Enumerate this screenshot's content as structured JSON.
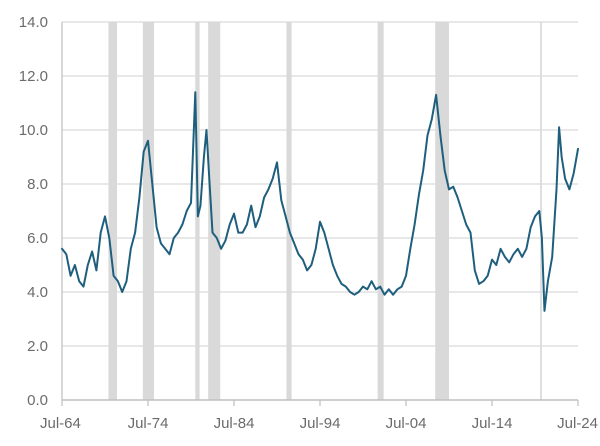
{
  "chart_data": {
    "type": "line",
    "title": "",
    "xlabel": "",
    "ylabel": "",
    "ylim": [
      0,
      14
    ],
    "yticks": [
      "0.0",
      "2.0",
      "4.0",
      "6.0",
      "8.0",
      "10.0",
      "12.0",
      "14.0"
    ],
    "yticks_values": [
      0,
      2,
      4,
      6,
      8,
      10,
      12,
      14
    ],
    "xlim": [
      1964.5,
      2024.5
    ],
    "xticks": [
      "Jul-64",
      "Jul-74",
      "Jul-84",
      "Jul-94",
      "Jul-04",
      "Jul-14",
      "Jul-24"
    ],
    "xticks_values": [
      1964.5,
      1974.5,
      1984.5,
      1994.5,
      2004.5,
      2014.5,
      2024.5
    ],
    "grid": true,
    "legend": "none",
    "colors": {
      "line": "#1f5f7e",
      "recession": "#d9d9d9",
      "grid": "#d9d9d9",
      "axis": "#bfbfbf",
      "tick_text": "#6b6b6b"
    },
    "recession_bands": [
      [
        1969.9,
        1970.9
      ],
      [
        1973.9,
        1975.2
      ],
      [
        1980.0,
        1980.5
      ],
      [
        1981.5,
        1982.9
      ],
      [
        1990.6,
        1991.2
      ],
      [
        2001.2,
        2001.9
      ],
      [
        2007.9,
        2009.5
      ],
      [
        2020.1,
        2020.3
      ]
    ],
    "series": [
      {
        "x": [
          1964.5,
          1965.0,
          1965.5,
          1966.0,
          1966.5,
          1967.0,
          1967.5,
          1968.0,
          1968.5,
          1969.0,
          1969.5,
          1970.0,
          1970.5,
          1971.0,
          1971.5,
          1972.0,
          1972.5,
          1973.0,
          1973.5,
          1974.0,
          1974.5,
          1975.0,
          1975.5,
          1976.0,
          1976.5,
          1977.0,
          1977.5,
          1978.0,
          1978.5,
          1979.0,
          1979.5,
          1980.0,
          1980.3,
          1980.6,
          1981.0,
          1981.3,
          1981.7,
          1982.0,
          1982.5,
          1983.0,
          1983.5,
          1984.0,
          1984.5,
          1985.0,
          1985.5,
          1986.0,
          1986.5,
          1987.0,
          1987.5,
          1988.0,
          1988.5,
          1989.0,
          1989.5,
          1990.0,
          1990.5,
          1991.0,
          1991.5,
          1992.0,
          1992.5,
          1993.0,
          1993.5,
          1994.0,
          1994.5,
          1995.0,
          1995.5,
          1996.0,
          1996.5,
          1997.0,
          1997.5,
          1998.0,
          1998.5,
          1999.0,
          1999.5,
          2000.0,
          2000.5,
          2001.0,
          2001.5,
          2002.0,
          2002.5,
          2003.0,
          2003.5,
          2004.0,
          2004.5,
          2005.0,
          2005.5,
          2006.0,
          2006.5,
          2007.0,
          2007.5,
          2008.0,
          2008.5,
          2009.0,
          2009.5,
          2010.0,
          2010.5,
          2011.0,
          2011.5,
          2012.0,
          2012.5,
          2013.0,
          2013.5,
          2014.0,
          2014.5,
          2015.0,
          2015.5,
          2016.0,
          2016.5,
          2017.0,
          2017.5,
          2018.0,
          2018.5,
          2019.0,
          2019.5,
          2020.0,
          2020.3,
          2020.6,
          2021.0,
          2021.5,
          2022.0,
          2022.3,
          2022.6,
          2023.0,
          2023.5,
          2024.0,
          2024.5
        ],
        "y": [
          5.6,
          5.4,
          4.6,
          5.0,
          4.4,
          4.2,
          5.0,
          5.5,
          4.8,
          6.2,
          6.8,
          6.0,
          4.6,
          4.4,
          4.0,
          4.4,
          5.6,
          6.2,
          7.5,
          9.2,
          9.6,
          8.0,
          6.4,
          5.8,
          5.6,
          5.4,
          6.0,
          6.2,
          6.5,
          7.0,
          7.3,
          11.4,
          6.8,
          7.2,
          9.0,
          10.0,
          7.8,
          6.2,
          6.0,
          5.6,
          5.9,
          6.5,
          6.9,
          6.2,
          6.2,
          6.5,
          7.2,
          6.4,
          6.8,
          7.5,
          7.8,
          8.2,
          8.8,
          7.4,
          6.8,
          6.2,
          5.8,
          5.4,
          5.2,
          4.8,
          5.0,
          5.6,
          6.6,
          6.2,
          5.6,
          5.0,
          4.6,
          4.3,
          4.2,
          4.0,
          3.9,
          4.0,
          4.2,
          4.1,
          4.4,
          4.1,
          4.2,
          3.9,
          4.1,
          3.9,
          4.1,
          4.2,
          4.6,
          5.6,
          6.5,
          7.6,
          8.5,
          9.8,
          10.4,
          11.3,
          9.8,
          8.5,
          7.8,
          7.9,
          7.5,
          7.0,
          6.5,
          6.2,
          4.8,
          4.3,
          4.4,
          4.6,
          5.2,
          5.0,
          5.6,
          5.3,
          5.1,
          5.4,
          5.6,
          5.3,
          5.6,
          6.4,
          6.8,
          7.0,
          6.0,
          3.3,
          4.4,
          5.3,
          7.8,
          10.1,
          9.0,
          8.2,
          7.8,
          8.4,
          9.3
        ],
        "color": "#1f5f7e"
      }
    ]
  }
}
